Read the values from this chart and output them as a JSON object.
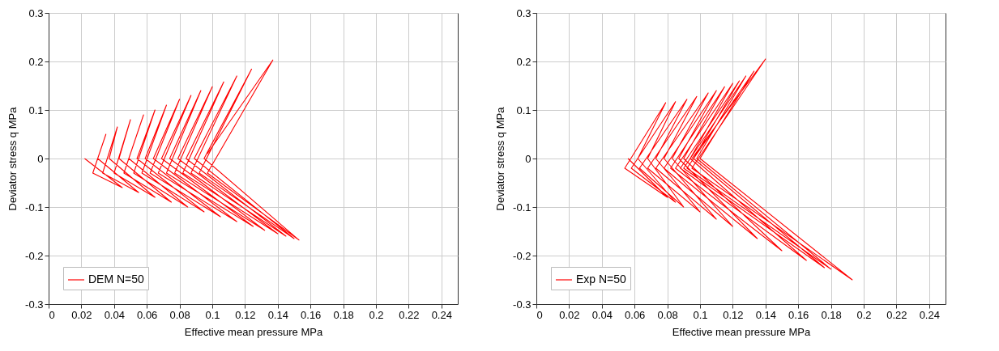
{
  "chart_data": [
    {
      "type": "line",
      "xlabel": "Effective mean pressure MPa",
      "ylabel": "Deviator stress q MPa",
      "xlim": [
        0,
        0.25
      ],
      "ylim": [
        -0.3,
        0.3
      ],
      "xticks": [
        0,
        0.02,
        0.04,
        0.06,
        0.08,
        0.1,
        0.12,
        0.14,
        0.16,
        0.18,
        0.2,
        0.22,
        0.24
      ],
      "yticks": [
        -0.3,
        -0.2,
        -0.1,
        0,
        0.1,
        0.2,
        0.3
      ],
      "grid": true,
      "legend": "bottom left",
      "series": [
        {
          "name": "DEM N=50",
          "color": "#ff0000",
          "x": [
            0.097,
            0.137,
            0.097,
            0.153,
            0.095,
            0.124,
            0.092,
            0.15,
            0.089,
            0.115,
            0.087,
            0.145,
            0.084,
            0.107,
            0.082,
            0.14,
            0.079,
            0.1,
            0.077,
            0.132,
            0.074,
            0.093,
            0.072,
            0.125,
            0.069,
            0.087,
            0.067,
            0.115,
            0.064,
            0.08,
            0.062,
            0.105,
            0.059,
            0.072,
            0.057,
            0.095,
            0.054,
            0.065,
            0.052,
            0.085,
            0.049,
            0.058,
            0.046,
            0.075,
            0.043,
            0.05,
            0.04,
            0.065,
            0.037,
            0.042,
            0.033,
            0.055,
            0.03,
            0.035,
            0.027,
            0.045,
            0.022
          ],
          "values": [
            0.01,
            0.203,
            -0.03,
            -0.168,
            0,
            0.184,
            -0.03,
            -0.165,
            0,
            0.17,
            -0.03,
            -0.16,
            0,
            0.158,
            -0.03,
            -0.155,
            0,
            0.148,
            -0.03,
            -0.148,
            0,
            0.14,
            -0.03,
            -0.14,
            0,
            0.13,
            -0.03,
            -0.13,
            0,
            0.122,
            -0.03,
            -0.12,
            0,
            0.11,
            -0.03,
            -0.11,
            0,
            0.1,
            -0.03,
            -0.1,
            0,
            0.09,
            -0.03,
            -0.09,
            0,
            0.08,
            -0.03,
            -0.08,
            0,
            0.065,
            -0.03,
            -0.07,
            0,
            0.05,
            -0.03,
            -0.06,
            0
          ]
        }
      ]
    },
    {
      "type": "line",
      "xlabel": "Effective mean pressure MPa",
      "ylabel": "Deviator stress q MPa",
      "xlim": [
        0,
        0.25
      ],
      "ylim": [
        -0.3,
        0.3
      ],
      "xticks": [
        0,
        0.02,
        0.04,
        0.06,
        0.08,
        0.1,
        0.12,
        0.14,
        0.16,
        0.18,
        0.2,
        0.22,
        0.24
      ],
      "yticks": [
        -0.3,
        -0.2,
        -0.1,
        0,
        0.1,
        0.2,
        0.3
      ],
      "grid": true,
      "legend": "bottom left",
      "series": [
        {
          "name": "Exp N=50",
          "color": "#ff0000",
          "x": [
            0.095,
            0.14,
            0.095,
            0.193,
            0.1,
            0.133,
            0.092,
            0.18,
            0.098,
            0.128,
            0.09,
            0.176,
            0.096,
            0.124,
            0.088,
            0.165,
            0.094,
            0.12,
            0.085,
            0.15,
            0.09,
            0.115,
            0.082,
            0.135,
            0.087,
            0.11,
            0.078,
            0.12,
            0.083,
            0.105,
            0.073,
            0.11,
            0.078,
            0.098,
            0.068,
            0.1,
            0.073,
            0.092,
            0.063,
            0.09,
            0.068,
            0.085,
            0.058,
            0.085,
            0.062,
            0.079,
            0.054,
            0.08,
            0.056
          ],
          "values": [
            0,
            0.205,
            -0.02,
            -0.25,
            0,
            0.18,
            -0.02,
            -0.228,
            0,
            0.17,
            -0.02,
            -0.225,
            0,
            0.16,
            -0.02,
            -0.21,
            0,
            0.155,
            -0.02,
            -0.19,
            0,
            0.148,
            -0.02,
            -0.165,
            0,
            0.14,
            -0.02,
            -0.14,
            0,
            0.135,
            -0.02,
            -0.125,
            0,
            0.128,
            -0.02,
            -0.11,
            0,
            0.122,
            -0.02,
            -0.1,
            0,
            0.117,
            -0.02,
            -0.09,
            0,
            0.115,
            -0.02,
            -0.08,
            0
          ]
        }
      ]
    }
  ]
}
